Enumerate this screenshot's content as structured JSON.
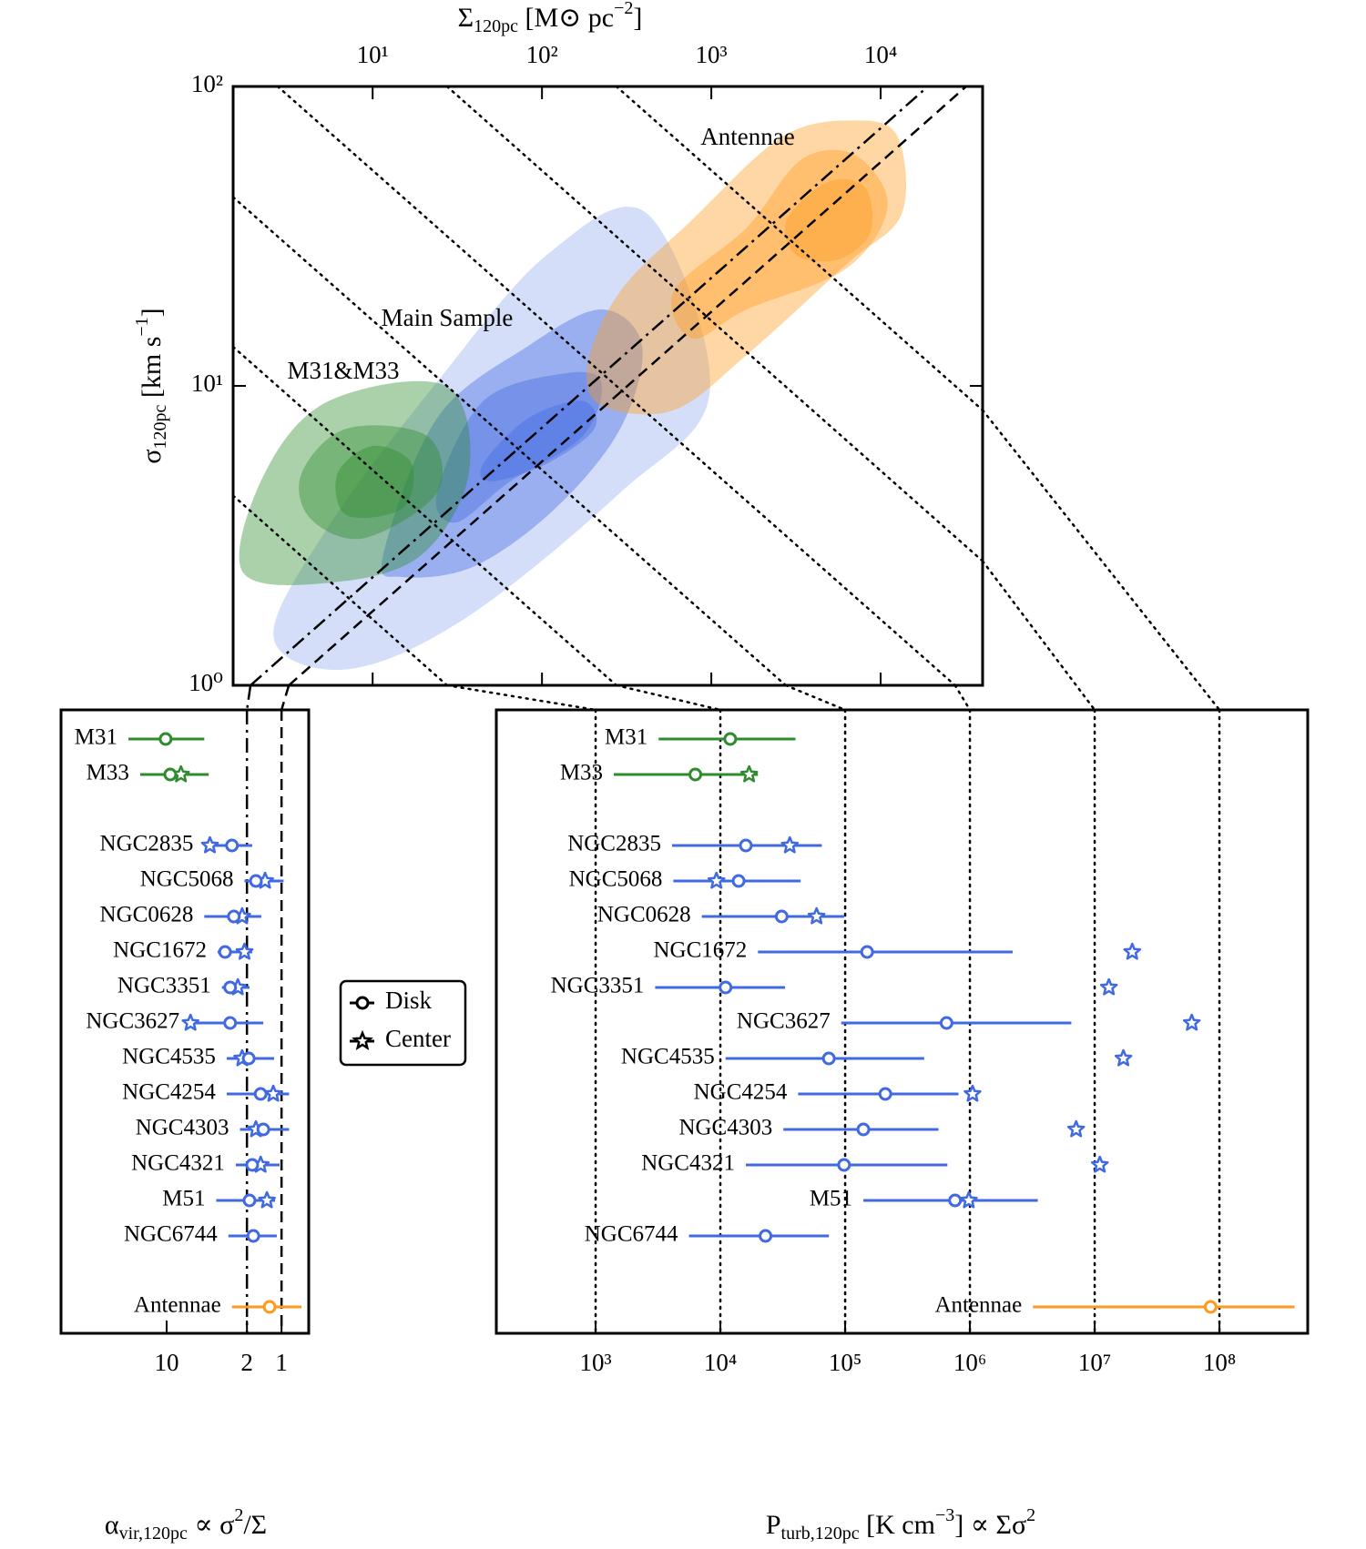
{
  "chart_data": [
    {
      "type": "contour",
      "xlabel": [
        "Σ",
        "120pc",
        " [M⊙ pc",
        "−2",
        "]"
      ],
      "ylabel": [
        "σ",
        "120pc",
        " [km s",
        "−1",
        "]"
      ],
      "xscale": "log",
      "yscale": "log",
      "xlim": [
        1.5,
        40000
      ],
      "ylim": [
        1,
        100
      ],
      "xticks": [
        {
          "value": 10,
          "label": "10¹"
        },
        {
          "value": 100,
          "label": "10²"
        },
        {
          "value": 1000,
          "label": "10³"
        },
        {
          "value": 10000,
          "label": "10⁴"
        }
      ],
      "yticks": [
        {
          "value": 1,
          "label": "10⁰"
        },
        {
          "value": 10,
          "label": "10¹"
        },
        {
          "value": 100,
          "label": "10²"
        }
      ],
      "series": [
        {
          "name": "Main Sample",
          "color": "#4169e1",
          "cloud": {
            "x": [
              2.6,
              5.5,
              24,
              107,
              420,
              980,
              290,
              35,
              7
            ],
            "y": [
              1.45,
              3.4,
              10.3,
              27.4,
              37.5,
              9.6,
              4.4,
              1.67,
              1.13
            ]
          },
          "contours": [
            {
              "x": [
                11.5,
                24,
                83,
                224,
                390,
                290,
                120,
                40,
                15
              ],
              "y": [
                2.7,
                7.8,
                13.6,
                18,
                13.6,
                7.2,
                3.9,
                2.5,
                2.3
              ]
            },
            {
              "x": [
                24,
                45,
                135,
                224,
                174,
                65,
                31
              ],
              "y": [
                4.4,
                8.9,
                11,
                10.3,
                6.8,
                4.8,
                3.5
              ]
            },
            {
              "x": [
                45,
                83,
                174,
                204,
                107,
                50
              ],
              "y": [
                5.5,
                7.8,
                8.9,
                7.2,
                5.5,
                4.8
              ]
            }
          ]
        },
        {
          "name": "M31&M33",
          "color": "#2e8b2e",
          "contours": [
            {
              "x": [
                1.7,
                2.3,
                5.5,
                27,
                37,
                19,
                5.5
              ],
              "y": [
                2.4,
                5.1,
                8.9,
                10,
                5.1,
                2.7,
                2.2
              ]
            },
            {
              "x": [
                3.8,
                7,
                21,
                24,
                8.9,
                4.3
              ],
              "y": [
                5.1,
                7.2,
                6.8,
                4.4,
                3.1,
                3.6
              ]
            },
            {
              "x": [
                6.2,
                10,
                17,
                15,
                7
              ],
              "y": [
                5.1,
                6.3,
                5.5,
                3.9,
                3.7
              ]
            }
          ]
        },
        {
          "name": "Antennae",
          "color": "#ff9a1f",
          "contours": [
            {
              "x": [
                186,
                290,
                776,
                2630,
                7080,
                12600,
                13300,
                6300,
                1620,
                600,
                224
              ],
              "y": [
                11.8,
                20.7,
                36,
                68,
                77,
                68,
                37.5,
                25.5,
                12.7,
                8.3,
                8.6
              ]
            },
            {
              "x": [
                600,
                1620,
                3400,
                7080,
                11000,
                6300,
                1620,
                776
              ],
              "y": [
                20.7,
                33.8,
                57,
                59,
                40,
                24.7,
                18,
                14.4
              ]
            },
            {
              "x": [
                2800,
                4900,
                8100,
                8700,
                5600,
                3150
              ],
              "y": [
                36,
                48,
                46,
                32.6,
                26.4,
                27.4
              ]
            }
          ]
        }
      ],
      "pressure_lines": [
        {
          "x": [
            1.5,
            27.5
          ],
          "y": [
            4.3,
            1
          ]
        },
        {
          "x": [
            1.5,
            275
          ],
          "y": [
            13.5,
            1
          ]
        },
        {
          "x": [
            1.5,
            2750
          ],
          "y": [
            42.7,
            1
          ]
        },
        {
          "x": [
            2.75,
            27500
          ],
          "y": [
            100,
            1
          ]
        },
        {
          "x": [
            27.5,
            40000
          ],
          "y": [
            100,
            2.6
          ]
        },
        {
          "x": [
            275,
            40000
          ],
          "y": [
            100,
            8.3
          ]
        }
      ],
      "virial_lines": [
        {
          "x": [
            1.9,
            19000
          ],
          "y": [
            1,
            100
          ],
          "style": "dashdot"
        },
        {
          "x": [
            3.2,
            32000
          ],
          "y": [
            1,
            100
          ],
          "style": "dashed"
        }
      ]
    },
    {
      "type": "errorbar",
      "xlabel": [
        "α",
        "vir,120pc",
        " ∝ σ",
        "2",
        "/Σ"
      ],
      "xscale": "log",
      "xlim": [
        83,
        0.58
      ],
      "xticks": [
        10,
        2,
        1
      ],
      "vlines": [
        {
          "value": 2,
          "style": "dashdot"
        },
        {
          "value": 1,
          "style": "dashed"
        }
      ],
      "legend": [
        "Disk",
        "Center"
      ],
      "categories": [
        "M31",
        "M33",
        null,
        "NGC2835",
        "NGC5068",
        "NGC0628",
        "NGC1672",
        "NGC3351",
        "NGC3627",
        "NGC4535",
        "NGC4254",
        "NGC4303",
        "NGC4321",
        "M51",
        "NGC6744",
        null,
        "Antennae"
      ],
      "point_colors": [
        "#2e8b2e",
        "#2e8b2e",
        null,
        "#4169e1",
        "#4169e1",
        "#4169e1",
        "#4169e1",
        "#4169e1",
        "#4169e1",
        "#4169e1",
        "#4169e1",
        "#4169e1",
        "#4169e1",
        "#4169e1",
        "#4169e1",
        null,
        "#ff9a1f"
      ],
      "disk": [
        10.2,
        9.3,
        null,
        2.7,
        1.67,
        2.6,
        3.1,
        2.8,
        2.8,
        1.93,
        1.52,
        1.44,
        1.8,
        1.9,
        1.76,
        null,
        1.27
      ],
      "center": [
        null,
        7.5,
        null,
        4.2,
        1.39,
        2.2,
        2.1,
        2.4,
        6.2,
        2.2,
        1.18,
        1.67,
        1.52,
        1.34,
        null,
        null,
        null
      ],
      "err_low": [
        4.7,
        4.3,
        null,
        1.8,
        0.96,
        1.5,
        1.8,
        1.9,
        1.44,
        1.16,
        0.86,
        0.86,
        1.04,
        1.14,
        1.1,
        null,
        0.67
      ],
      "err_high": [
        21.5,
        17,
        null,
        4.7,
        2.1,
        4.7,
        3.6,
        3.3,
        6.2,
        3.0,
        3.0,
        2.3,
        2.5,
        3.7,
        2.9,
        null,
        2.7
      ]
    },
    {
      "type": "errorbar",
      "xlabel": [
        "P",
        "turb,120pc",
        " [K cm",
        "−3",
        "] ∝ Σσ",
        "2"
      ],
      "xscale": "log",
      "xlim": [
        160,
        510000000
      ],
      "grid": true,
      "xticks": [
        {
          "value": 1000,
          "label": "10³"
        },
        {
          "value": 10000,
          "label": "10⁴"
        },
        {
          "value": 100000,
          "label": "10⁵"
        },
        {
          "value": 1000000,
          "label": "10⁶"
        },
        {
          "value": 10000000,
          "label": "10⁷"
        },
        {
          "value": 100000000,
          "label": "10⁸"
        }
      ],
      "categories": [
        "M31",
        "M33",
        null,
        "NGC2835",
        "NGC5068",
        "NGC0628",
        "NGC1672",
        "NGC3351",
        "NGC3627",
        "NGC4535",
        "NGC4254",
        "NGC4303",
        "NGC4321",
        "M51",
        "NGC6744",
        null,
        "Antennae"
      ],
      "point_colors": [
        "#2e8b2e",
        "#2e8b2e",
        null,
        "#4169e1",
        "#4169e1",
        "#4169e1",
        "#4169e1",
        "#4169e1",
        "#4169e1",
        "#4169e1",
        "#4169e1",
        "#4169e1",
        "#4169e1",
        "#4169e1",
        "#4169e1",
        null,
        "#ff9a1f"
      ],
      "disk": [
        12000,
        6300,
        null,
        16000,
        14000,
        31000,
        150000,
        11000,
        650000,
        74000,
        210000,
        140000,
        98000,
        760000,
        23000,
        null,
        85000000
      ],
      "center": [
        null,
        17000,
        null,
        36000,
        9300,
        59000,
        20000000,
        13000000,
        60000000,
        17000000,
        1050000,
        7100000,
        11000000,
        980000,
        null,
        null,
        null
      ],
      "err_low": [
        3200,
        1400,
        null,
        4100,
        4200,
        7100,
        20000,
        3000,
        93000,
        11000,
        42000,
        32000,
        16000,
        140000,
        5600,
        null,
        3200000
      ],
      "err_high": [
        40000,
        20000,
        null,
        65000,
        44000,
        98000,
        2200000,
        33000,
        6500000,
        430000,
        810000,
        560000,
        660000,
        3500000,
        74000,
        null,
        400000000
      ]
    }
  ]
}
